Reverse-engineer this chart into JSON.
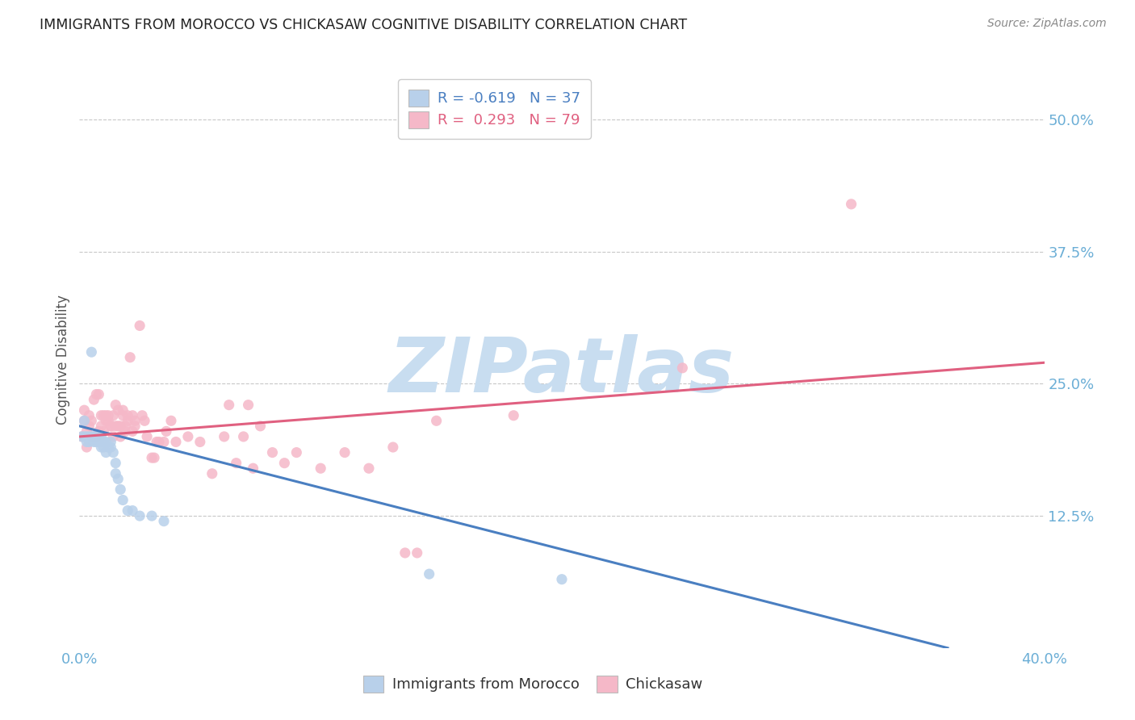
{
  "title": "IMMIGRANTS FROM MOROCCO VS CHICKASAW COGNITIVE DISABILITY CORRELATION CHART",
  "source": "Source: ZipAtlas.com",
  "ylabel": "Cognitive Disability",
  "ytick_labels": [
    "12.5%",
    "25.0%",
    "37.5%",
    "50.0%"
  ],
  "ytick_values": [
    0.125,
    0.25,
    0.375,
    0.5
  ],
  "xlim": [
    0.0,
    0.4
  ],
  "ylim": [
    0.0,
    0.545
  ],
  "legend_r_blue": "-0.619",
  "legend_n_blue": "37",
  "legend_r_pink": "0.293",
  "legend_n_pink": "79",
  "blue_fill_color": "#b8d0ea",
  "pink_fill_color": "#f5b8c8",
  "blue_line_color": "#4a7fc1",
  "pink_line_color": "#e06080",
  "title_color": "#222222",
  "axis_label_color": "#6baed6",
  "blue_scatter": [
    [
      0.001,
      0.2
    ],
    [
      0.002,
      0.215
    ],
    [
      0.002,
      0.2
    ],
    [
      0.003,
      0.2
    ],
    [
      0.003,
      0.195
    ],
    [
      0.004,
      0.2
    ],
    [
      0.004,
      0.195
    ],
    [
      0.005,
      0.28
    ],
    [
      0.005,
      0.2
    ],
    [
      0.006,
      0.2
    ],
    [
      0.006,
      0.195
    ],
    [
      0.007,
      0.2
    ],
    [
      0.007,
      0.195
    ],
    [
      0.008,
      0.2
    ],
    [
      0.008,
      0.195
    ],
    [
      0.009,
      0.2
    ],
    [
      0.009,
      0.19
    ],
    [
      0.01,
      0.195
    ],
    [
      0.01,
      0.19
    ],
    [
      0.011,
      0.195
    ],
    [
      0.011,
      0.185
    ],
    [
      0.012,
      0.19
    ],
    [
      0.013,
      0.195
    ],
    [
      0.013,
      0.19
    ],
    [
      0.014,
      0.185
    ],
    [
      0.015,
      0.175
    ],
    [
      0.015,
      0.165
    ],
    [
      0.016,
      0.16
    ],
    [
      0.017,
      0.15
    ],
    [
      0.018,
      0.14
    ],
    [
      0.02,
      0.13
    ],
    [
      0.022,
      0.13
    ],
    [
      0.025,
      0.125
    ],
    [
      0.03,
      0.125
    ],
    [
      0.035,
      0.12
    ],
    [
      0.145,
      0.07
    ],
    [
      0.2,
      0.065
    ]
  ],
  "pink_scatter": [
    [
      0.001,
      0.2
    ],
    [
      0.002,
      0.215
    ],
    [
      0.002,
      0.225
    ],
    [
      0.003,
      0.205
    ],
    [
      0.003,
      0.19
    ],
    [
      0.004,
      0.22
    ],
    [
      0.004,
      0.21
    ],
    [
      0.005,
      0.2
    ],
    [
      0.005,
      0.215
    ],
    [
      0.006,
      0.235
    ],
    [
      0.006,
      0.2
    ],
    [
      0.007,
      0.2
    ],
    [
      0.007,
      0.24
    ],
    [
      0.008,
      0.24
    ],
    [
      0.008,
      0.205
    ],
    [
      0.009,
      0.22
    ],
    [
      0.009,
      0.21
    ],
    [
      0.01,
      0.22
    ],
    [
      0.01,
      0.205
    ],
    [
      0.011,
      0.22
    ],
    [
      0.011,
      0.215
    ],
    [
      0.012,
      0.22
    ],
    [
      0.012,
      0.215
    ],
    [
      0.013,
      0.21
    ],
    [
      0.013,
      0.21
    ],
    [
      0.014,
      0.22
    ],
    [
      0.014,
      0.2
    ],
    [
      0.015,
      0.23
    ],
    [
      0.015,
      0.21
    ],
    [
      0.016,
      0.225
    ],
    [
      0.016,
      0.21
    ],
    [
      0.017,
      0.21
    ],
    [
      0.017,
      0.2
    ],
    [
      0.018,
      0.225
    ],
    [
      0.018,
      0.22
    ],
    [
      0.019,
      0.21
    ],
    [
      0.019,
      0.205
    ],
    [
      0.02,
      0.22
    ],
    [
      0.02,
      0.215
    ],
    [
      0.021,
      0.275
    ],
    [
      0.022,
      0.22
    ],
    [
      0.022,
      0.205
    ],
    [
      0.023,
      0.215
    ],
    [
      0.023,
      0.21
    ],
    [
      0.025,
      0.305
    ],
    [
      0.026,
      0.22
    ],
    [
      0.027,
      0.215
    ],
    [
      0.028,
      0.2
    ],
    [
      0.03,
      0.18
    ],
    [
      0.031,
      0.18
    ],
    [
      0.032,
      0.195
    ],
    [
      0.033,
      0.195
    ],
    [
      0.035,
      0.195
    ],
    [
      0.036,
      0.205
    ],
    [
      0.038,
      0.215
    ],
    [
      0.04,
      0.195
    ],
    [
      0.045,
      0.2
    ],
    [
      0.05,
      0.195
    ],
    [
      0.055,
      0.165
    ],
    [
      0.06,
      0.2
    ],
    [
      0.062,
      0.23
    ],
    [
      0.065,
      0.175
    ],
    [
      0.068,
      0.2
    ],
    [
      0.07,
      0.23
    ],
    [
      0.072,
      0.17
    ],
    [
      0.075,
      0.21
    ],
    [
      0.08,
      0.185
    ],
    [
      0.085,
      0.175
    ],
    [
      0.09,
      0.185
    ],
    [
      0.1,
      0.17
    ],
    [
      0.11,
      0.185
    ],
    [
      0.12,
      0.17
    ],
    [
      0.13,
      0.19
    ],
    [
      0.135,
      0.09
    ],
    [
      0.14,
      0.09
    ],
    [
      0.148,
      0.215
    ],
    [
      0.18,
      0.22
    ],
    [
      0.25,
      0.265
    ],
    [
      0.32,
      0.42
    ]
  ],
  "blue_trend_x": [
    0.0,
    0.36
  ],
  "blue_trend_y": [
    0.21,
    0.0
  ],
  "pink_trend_x": [
    0.0,
    0.4
  ],
  "pink_trend_y": [
    0.2,
    0.27
  ],
  "watermark": "ZIPatlas",
  "watermark_color": "#c8ddf0",
  "background_color": "#ffffff",
  "grid_color": "#c8c8c8"
}
